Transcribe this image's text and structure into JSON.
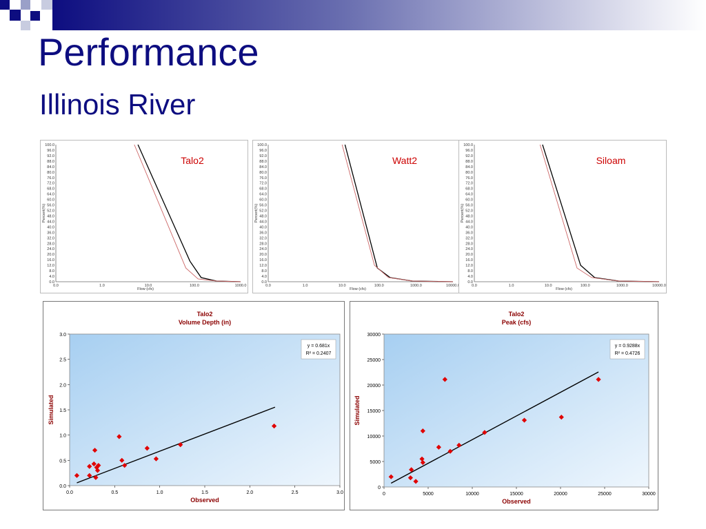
{
  "slide": {
    "title": "Performance",
    "subtitle": "Illinois River",
    "colors": {
      "title": "#0d0d80",
      "marker": "#e00000",
      "label": "#8b0000"
    }
  },
  "chart_data": [
    {
      "type": "line",
      "panel": "flow-duration-talo2",
      "annotation": "Talo2",
      "xlabel": "Flow (cfs)",
      "ylabel": "Percent(%)",
      "x_ticks": [
        "0.0",
        "1.0",
        "10.0",
        "100.0",
        "1000.0"
      ],
      "y_ticks": [
        "100.0",
        "96.0",
        "92.0",
        "88.0",
        "84.0",
        "80.0",
        "76.0",
        "72.0",
        "68.0",
        "64.0",
        "60.0",
        "56.0",
        "52.0",
        "48.0",
        "44.0",
        "40.0",
        "36.0",
        "32.0",
        "28.0",
        "24.0",
        "20.0",
        "16.0",
        "12.0",
        "8.0",
        "4.0",
        "0.0"
      ],
      "series": [
        {
          "color": "#000000",
          "points": [
            [
              6,
              100
            ],
            [
              80,
              15
            ],
            [
              140,
              3
            ],
            [
              300,
              0.5
            ],
            [
              1000,
              0
            ]
          ]
        },
        {
          "color": "#cc6666",
          "points": [
            [
              5,
              100
            ],
            [
              65,
              10
            ],
            [
              120,
              2
            ],
            [
              300,
              0.5
            ],
            [
              1000,
              0
            ]
          ]
        }
      ]
    },
    {
      "type": "line",
      "panel": "flow-duration-watt2",
      "annotation": "Watt2",
      "xlabel": "Flow (cfs)",
      "ylabel": "Percent(%)",
      "x_ticks": [
        "0.0",
        "1.0",
        "10.0",
        "100.0",
        "1000.0",
        "10000.0"
      ],
      "y_ticks": [
        "100.0",
        "96.0",
        "92.0",
        "88.0",
        "84.0",
        "80.0",
        "76.0",
        "72.0",
        "68.0",
        "64.0",
        "60.0",
        "56.0",
        "52.0",
        "48.0",
        "44.0",
        "40.0",
        "36.0",
        "32.0",
        "28.0",
        "24.0",
        "20.0",
        "16.0",
        "12.0",
        "8.0",
        "4.0",
        "0.0"
      ],
      "series": [
        {
          "color": "#000000",
          "points": [
            [
              12,
              100
            ],
            [
              90,
              10
            ],
            [
              200,
              3
            ],
            [
              800,
              0.5
            ],
            [
              10000,
              0
            ]
          ]
        },
        {
          "color": "#cc6666",
          "points": [
            [
              10,
              100
            ],
            [
              75,
              12
            ],
            [
              180,
              3
            ],
            [
              800,
              0.5
            ],
            [
              10000,
              0
            ]
          ]
        }
      ]
    },
    {
      "type": "line",
      "panel": "flow-duration-siloam",
      "annotation": "Siloam",
      "xlabel": "Flow (cfs)",
      "ylabel": "Percent(%)",
      "x_ticks": [
        "0.0",
        "1.0",
        "10.0",
        "100.0",
        "1000.0",
        "10000.0"
      ],
      "y_ticks": [
        "100.0",
        "96.0",
        "92.0",
        "88.0",
        "84.0",
        "80.0",
        "76.0",
        "72.0",
        "68.0",
        "64.0",
        "60.0",
        "56.0",
        "52.0",
        "48.0",
        "44.0",
        "40.0",
        "36.0",
        "32.0",
        "28.0",
        "24.0",
        "20.0",
        "16.0",
        "12.0",
        "8.0",
        "4.0",
        "0.0"
      ],
      "series": [
        {
          "color": "#000000",
          "points": [
            [
              7,
              100
            ],
            [
              75,
              12
            ],
            [
              180,
              3
            ],
            [
              800,
              0.5
            ],
            [
              10000,
              0
            ]
          ]
        },
        {
          "color": "#cc6666",
          "points": [
            [
              6,
              100
            ],
            [
              60,
              10
            ],
            [
              150,
              3
            ],
            [
              800,
              0.5
            ],
            [
              10000,
              0
            ]
          ]
        }
      ]
    },
    {
      "type": "scatter",
      "panel": "scatter-volume-depth",
      "title": "Talo2",
      "subtitle": "Volume Depth (in)",
      "xlabel": "Observed",
      "ylabel": "Simulated",
      "xlim": [
        0,
        3.0
      ],
      "ylim": [
        0,
        3.0
      ],
      "x_ticks": [
        "0.0",
        "0.5",
        "1.0",
        "1.5",
        "2.0",
        "2.5",
        "3.0"
      ],
      "y_ticks": [
        "0.0",
        "0.5",
        "1.0",
        "1.5",
        "2.0",
        "2.5",
        "3.0"
      ],
      "equation": "y = 0.681x",
      "r2": "R² = 0.2407",
      "trendline": {
        "slope": 0.681,
        "x_range": [
          0.08,
          2.28
        ]
      },
      "points": [
        [
          0.08,
          0.2
        ],
        [
          0.22,
          0.2
        ],
        [
          0.22,
          0.38
        ],
        [
          0.27,
          0.43
        ],
        [
          0.28,
          0.7
        ],
        [
          0.29,
          0.16
        ],
        [
          0.3,
          0.36
        ],
        [
          0.31,
          0.3
        ],
        [
          0.32,
          0.4
        ],
        [
          0.55,
          0.97
        ],
        [
          0.58,
          0.5
        ],
        [
          0.61,
          0.4
        ],
        [
          0.86,
          0.74
        ],
        [
          0.96,
          0.53
        ],
        [
          1.23,
          0.81
        ],
        [
          2.27,
          1.18
        ]
      ]
    },
    {
      "type": "scatter",
      "panel": "scatter-peak",
      "title": "Talo2",
      "subtitle": "Peak (cfs)",
      "xlabel": "Observed",
      "ylabel": "Simulated",
      "xlim": [
        0,
        30000
      ],
      "ylim": [
        0,
        30000
      ],
      "x_ticks": [
        "0",
        "5000",
        "10000",
        "15000",
        "20000",
        "25000",
        "30000"
      ],
      "y_ticks": [
        "0",
        "5000",
        "10000",
        "15000",
        "20000",
        "25000",
        "30000"
      ],
      "equation": "y = 0.9288x",
      "r2": "R² = 0.4726",
      "trendline": {
        "slope": 0.9288,
        "x_range": [
          800,
          24300
        ]
      },
      "points": [
        [
          800,
          2000
        ],
        [
          3000,
          1800
        ],
        [
          3100,
          3400
        ],
        [
          3600,
          1100
        ],
        [
          4300,
          5500
        ],
        [
          4400,
          4800
        ],
        [
          4400,
          11000
        ],
        [
          6200,
          7800
        ],
        [
          6900,
          21100
        ],
        [
          7500,
          7000
        ],
        [
          8500,
          8200
        ],
        [
          11400,
          10700
        ],
        [
          15900,
          13100
        ],
        [
          20100,
          13700
        ],
        [
          24300,
          21100
        ]
      ]
    }
  ]
}
